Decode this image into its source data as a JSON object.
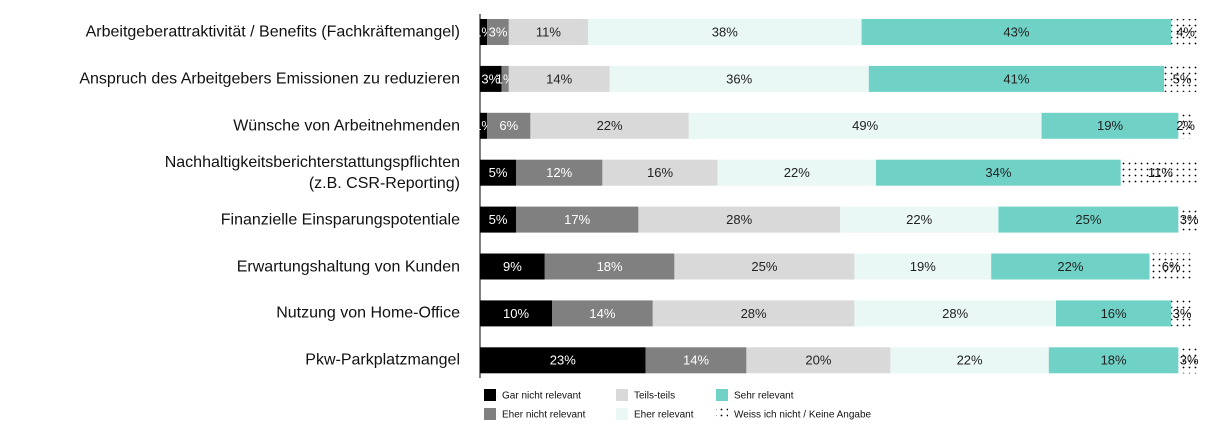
{
  "chart_data": {
    "type": "stacked-barh",
    "categories": [
      "Arbeitgeberattraktivität / Benefits (Fachkräftemangel)",
      "Anspruch des Arbeitgebers Emissionen zu reduzieren",
      "Wünsche von Arbeitnehmenden",
      "Nachhaltigkeitsberichterstattungspflichten\n(z.B. CSR-Reporting)",
      "Finanzielle Einsparungspotentiale",
      "Erwartungshaltung von Kunden",
      "Nutzung von Home-Office",
      "Pkw-Parkplatzmangel"
    ],
    "series": [
      {
        "name": "Gar nicht relevant",
        "color": "#000000",
        "values": [
          1,
          3,
          1,
          5,
          5,
          9,
          10,
          23
        ],
        "value_labels": [
          "1%",
          "3%",
          "1%",
          "5%",
          "5%",
          "9%",
          "10%",
          "23%"
        ]
      },
      {
        "name": "Eher nicht relevant",
        "color": "#808080",
        "values": [
          3,
          1,
          6,
          12,
          17,
          18,
          14,
          14
        ],
        "value_labels": [
          "3%",
          "1%",
          "6%",
          "12%",
          "17%",
          "18%",
          "14%",
          "14%"
        ]
      },
      {
        "name": "Teils-teils",
        "color": "#d9d9d9",
        "values": [
          11,
          14,
          22,
          16,
          28,
          25,
          28,
          20
        ],
        "value_labels": [
          "11%",
          "14%",
          "22%",
          "16%",
          "28%",
          "25%",
          "28%",
          "20%"
        ]
      },
      {
        "name": "Eher relevant",
        "color": "#e9f7f5",
        "values": [
          38,
          36,
          49,
          22,
          22,
          19,
          28,
          22
        ],
        "value_labels": [
          "38%",
          "36%",
          "49%",
          "22%",
          "22%",
          "19%",
          "28%",
          "22%"
        ]
      },
      {
        "name": "Sehr relevant",
        "color": "#70d1c6",
        "values": [
          43,
          41,
          19,
          34,
          25,
          22,
          16,
          18
        ],
        "value_labels": [
          "43%",
          "41%",
          "19%",
          "34%",
          "25%",
          "22%",
          "16%",
          "18%"
        ]
      },
      {
        "name": "Weiss ich nicht / Keine Angabe",
        "color": "#ffffff",
        "pattern": "dots",
        "values": [
          4,
          5,
          2,
          11,
          3,
          6,
          3,
          3
        ],
        "value_labels": [
          "4%",
          "5%",
          "2%",
          "11%",
          "3%",
          "6%",
          "3%",
          "3%"
        ]
      }
    ],
    "xlim": [
      0,
      100
    ]
  }
}
